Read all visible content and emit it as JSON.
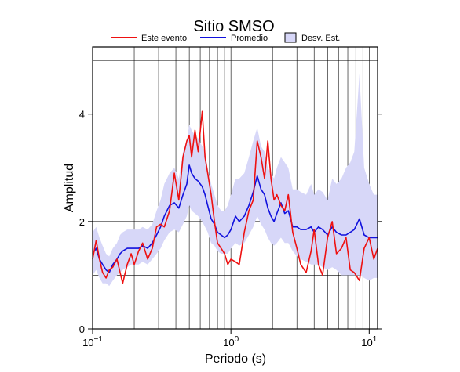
{
  "chart_data": {
    "type": "line",
    "title": "Sitio SMSO",
    "xlabel": "Periodo (s)",
    "ylabel": "Amplitud",
    "x_scale": "log",
    "xlim": [
      0.1,
      11.5
    ],
    "ylim": [
      0,
      5.25
    ],
    "grid": true,
    "legend_position": "top",
    "x_ticks": [
      {
        "value": 0.1,
        "base": "10",
        "exp": "−1"
      },
      {
        "value": 1,
        "label": "10",
        "exp": "0"
      },
      {
        "value": 10,
        "base": "10",
        "exp": "1"
      }
    ],
    "y_ticks": [
      0,
      2,
      4
    ],
    "legend": {
      "este_evento": "Este evento",
      "promedio": "Promedio",
      "desv_est": "Desv. Est."
    },
    "colors": {
      "este_evento": "#ee1111",
      "promedio": "#1111dd",
      "desv_est": "#d7d7f8"
    },
    "series": [
      {
        "name": "Este evento",
        "x": [
          0.1,
          0.106,
          0.112,
          0.118,
          0.125,
          0.132,
          0.14,
          0.15,
          0.158,
          0.165,
          0.178,
          0.19,
          0.2,
          0.215,
          0.23,
          0.25,
          0.27,
          0.29,
          0.31,
          0.33,
          0.36,
          0.39,
          0.42,
          0.45,
          0.48,
          0.5,
          0.52,
          0.55,
          0.58,
          0.62,
          0.65,
          0.68,
          0.72,
          0.76,
          0.8,
          0.85,
          0.9,
          0.95,
          1.0,
          1.08,
          1.15,
          1.25,
          1.35,
          1.45,
          1.55,
          1.65,
          1.75,
          1.85,
          1.95,
          2.05,
          2.15,
          2.3,
          2.45,
          2.6,
          2.8,
          3.0,
          3.2,
          3.5,
          3.8,
          4.0,
          4.3,
          4.6,
          5.0,
          5.4,
          5.8,
          6.3,
          6.8,
          7.3,
          7.8,
          8.5,
          9.2,
          10.0,
          10.8,
          11.5
        ],
        "values": [
          1.3,
          1.65,
          1.3,
          1.05,
          0.95,
          1.1,
          1.15,
          1.3,
          1.05,
          0.85,
          1.2,
          1.4,
          1.2,
          1.45,
          1.6,
          1.3,
          1.5,
          1.9,
          1.95,
          1.9,
          2.2,
          2.9,
          2.4,
          3.2,
          3.5,
          3.6,
          3.2,
          3.7,
          3.3,
          4.05,
          3.2,
          2.9,
          2.5,
          2.0,
          1.6,
          1.5,
          1.4,
          1.2,
          1.3,
          1.25,
          1.2,
          1.8,
          2.2,
          2.4,
          3.5,
          3.2,
          2.8,
          3.5,
          2.8,
          2.4,
          2.5,
          2.3,
          2.2,
          2.5,
          1.8,
          1.5,
          1.2,
          1.05,
          1.45,
          1.85,
          1.2,
          1.0,
          1.7,
          2.0,
          1.4,
          1.5,
          1.7,
          1.1,
          1.05,
          0.9,
          1.5,
          1.7,
          1.3,
          1.5
        ]
      },
      {
        "name": "Promedio",
        "x": [
          0.1,
          0.106,
          0.112,
          0.118,
          0.125,
          0.132,
          0.14,
          0.15,
          0.158,
          0.165,
          0.178,
          0.19,
          0.2,
          0.215,
          0.23,
          0.25,
          0.27,
          0.29,
          0.31,
          0.33,
          0.36,
          0.39,
          0.42,
          0.45,
          0.48,
          0.5,
          0.52,
          0.55,
          0.58,
          0.62,
          0.65,
          0.68,
          0.72,
          0.76,
          0.8,
          0.85,
          0.9,
          0.95,
          1.0,
          1.08,
          1.15,
          1.25,
          1.35,
          1.45,
          1.55,
          1.65,
          1.75,
          1.85,
          1.95,
          2.05,
          2.15,
          2.3,
          2.45,
          2.6,
          2.8,
          3.0,
          3.2,
          3.5,
          3.8,
          4.0,
          4.3,
          4.6,
          5.0,
          5.4,
          5.8,
          6.3,
          6.8,
          7.3,
          7.8,
          8.5,
          9.2,
          10.0,
          10.8,
          11.5
        ],
        "values": [
          1.4,
          1.5,
          1.3,
          1.2,
          1.1,
          1.05,
          1.2,
          1.3,
          1.4,
          1.45,
          1.5,
          1.5,
          1.5,
          1.5,
          1.55,
          1.5,
          1.6,
          1.75,
          1.9,
          2.1,
          2.3,
          2.35,
          2.25,
          2.5,
          2.7,
          3.05,
          2.9,
          2.8,
          2.75,
          2.65,
          2.5,
          2.3,
          2.05,
          1.95,
          1.8,
          1.75,
          1.7,
          1.75,
          1.85,
          2.1,
          2.0,
          2.1,
          2.3,
          2.55,
          2.85,
          2.6,
          2.5,
          2.25,
          2.1,
          2.0,
          2.15,
          2.35,
          2.15,
          2.2,
          1.9,
          1.9,
          1.85,
          1.85,
          1.9,
          1.8,
          1.9,
          1.85,
          1.75,
          1.9,
          1.8,
          1.75,
          1.75,
          1.8,
          1.85,
          2.05,
          1.75,
          1.7,
          1.7,
          1.7
        ]
      },
      {
        "name": "Desv. Est.",
        "x": [
          0.1,
          0.106,
          0.112,
          0.118,
          0.125,
          0.132,
          0.14,
          0.15,
          0.158,
          0.165,
          0.178,
          0.19,
          0.2,
          0.215,
          0.23,
          0.25,
          0.27,
          0.29,
          0.31,
          0.33,
          0.36,
          0.39,
          0.42,
          0.45,
          0.48,
          0.5,
          0.52,
          0.55,
          0.58,
          0.62,
          0.65,
          0.68,
          0.72,
          0.76,
          0.8,
          0.85,
          0.9,
          0.95,
          1.0,
          1.08,
          1.15,
          1.25,
          1.35,
          1.45,
          1.55,
          1.65,
          1.75,
          1.85,
          1.95,
          2.05,
          2.15,
          2.3,
          2.45,
          2.6,
          2.8,
          3.0,
          3.2,
          3.5,
          3.8,
          4.0,
          4.3,
          4.6,
          5.0,
          5.4,
          5.8,
          6.3,
          6.8,
          7.3,
          7.8,
          8.5,
          9.2,
          10.0,
          10.8,
          11.5
        ],
        "lower": [
          1.0,
          1.1,
          0.95,
          0.85,
          0.85,
          0.8,
          0.9,
          1.0,
          1.05,
          1.1,
          1.15,
          1.2,
          1.2,
          1.2,
          1.25,
          1.2,
          1.3,
          1.4,
          1.5,
          1.65,
          1.8,
          1.85,
          1.8,
          1.95,
          2.1,
          2.3,
          2.2,
          2.15,
          2.1,
          2.0,
          1.9,
          1.8,
          1.6,
          1.55,
          1.45,
          1.4,
          1.4,
          1.4,
          1.5,
          1.6,
          1.55,
          1.6,
          1.75,
          1.9,
          2.1,
          1.95,
          1.85,
          1.7,
          1.6,
          1.55,
          1.6,
          1.7,
          1.6,
          1.6,
          1.45,
          1.35,
          1.3,
          1.25,
          1.2,
          1.2,
          1.2,
          1.15,
          1.1,
          1.15,
          1.1,
          1.0,
          1.0,
          1.0,
          1.0,
          1.0,
          0.95,
          0.9,
          0.95,
          0.95
        ],
        "upper": [
          1.8,
          1.9,
          1.7,
          1.55,
          1.4,
          1.35,
          1.5,
          1.6,
          1.75,
          1.8,
          1.85,
          1.85,
          1.85,
          1.85,
          1.9,
          1.85,
          1.95,
          2.2,
          2.4,
          2.7,
          2.9,
          3.0,
          2.8,
          3.3,
          3.5,
          3.8,
          3.7,
          3.6,
          3.55,
          3.4,
          3.3,
          3.0,
          2.7,
          2.5,
          2.3,
          2.2,
          2.2,
          2.3,
          2.5,
          2.8,
          2.8,
          2.9,
          3.2,
          3.5,
          3.75,
          3.4,
          3.3,
          3.0,
          2.9,
          2.8,
          3.0,
          3.2,
          3.1,
          3.0,
          2.6,
          2.6,
          2.55,
          2.5,
          2.7,
          2.5,
          2.6,
          2.55,
          2.4,
          2.8,
          2.7,
          2.8,
          3.0,
          3.1,
          3.3,
          4.75,
          3.0,
          2.7,
          2.5,
          2.5
        ]
      }
    ]
  }
}
